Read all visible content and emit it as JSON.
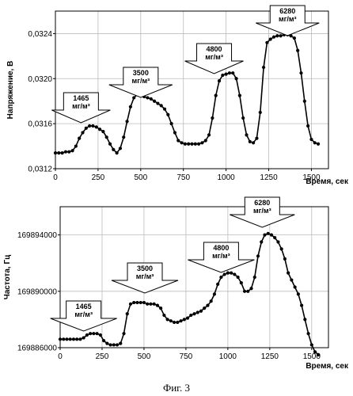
{
  "caption": "Фиг. 3",
  "chart_data": [
    {
      "type": "line",
      "ylabel": "Напряжение, В",
      "xlabel": "Время, сек",
      "xlim": [
        0,
        1600
      ],
      "ylim": [
        0.0312,
        0.0326
      ],
      "xticks": [
        0,
        250,
        500,
        750,
        1000,
        1250,
        1500
      ],
      "xtick_labels": [
        "0",
        "250",
        "500",
        "750",
        "1000",
        "1250",
        "1500"
      ],
      "yticks": [
        0.0312,
        0.0316,
        0.032,
        0.0324
      ],
      "ytick_labels": [
        "0,0312",
        "0,0316",
        "0,0320",
        "0,0324"
      ],
      "grid": true,
      "x": [
        0,
        20,
        40,
        60,
        80,
        100,
        120,
        140,
        160,
        180,
        200,
        220,
        240,
        260,
        280,
        300,
        320,
        340,
        360,
        380,
        400,
        420,
        440,
        460,
        480,
        500,
        520,
        540,
        560,
        580,
        600,
        620,
        640,
        660,
        680,
        700,
        720,
        740,
        760,
        780,
        800,
        820,
        840,
        860,
        880,
        900,
        920,
        940,
        960,
        980,
        1000,
        1020,
        1040,
        1060,
        1080,
        1100,
        1120,
        1140,
        1160,
        1180,
        1200,
        1220,
        1240,
        1260,
        1280,
        1300,
        1320,
        1340,
        1360,
        1380,
        1400,
        1420,
        1440,
        1460,
        1480,
        1500,
        1520,
        1540
      ],
      "y": [
        0.03134,
        0.03134,
        0.03134,
        0.03135,
        0.03135,
        0.03136,
        0.0314,
        0.03147,
        0.03152,
        0.03156,
        0.03158,
        0.03158,
        0.03157,
        0.03155,
        0.03153,
        0.03148,
        0.03142,
        0.03137,
        0.03134,
        0.03138,
        0.03148,
        0.03162,
        0.03175,
        0.03183,
        0.03186,
        0.03185,
        0.03184,
        0.03183,
        0.03182,
        0.0318,
        0.03178,
        0.03176,
        0.03173,
        0.03168,
        0.0316,
        0.03152,
        0.03145,
        0.03143,
        0.03142,
        0.03142,
        0.03142,
        0.03142,
        0.03142,
        0.03143,
        0.03145,
        0.0315,
        0.03165,
        0.03185,
        0.03198,
        0.03203,
        0.03204,
        0.03205,
        0.03205,
        0.032,
        0.03185,
        0.03165,
        0.0315,
        0.03144,
        0.03143,
        0.03147,
        0.0317,
        0.0321,
        0.03232,
        0.03235,
        0.03237,
        0.03238,
        0.03238,
        0.03239,
        0.03239,
        0.03238,
        0.03236,
        0.03225,
        0.03205,
        0.0318,
        0.03158,
        0.03146,
        0.03143,
        0.03142
      ],
      "annotations": [
        {
          "value": "1465",
          "unit": "мг/м³",
          "x": 150
        },
        {
          "value": "3500",
          "unit": "мг/м³",
          "x": 500
        },
        {
          "value": "4800",
          "unit": "мг/м³",
          "x": 930
        },
        {
          "value": "6280",
          "unit": "мг/м³",
          "x": 1360
        }
      ]
    },
    {
      "type": "line",
      "ylabel": "Частота, Гц",
      "xlabel": "Время, сек",
      "xlim": [
        0,
        1600
      ],
      "ylim": [
        169886000,
        169896000
      ],
      "xticks": [
        0,
        250,
        500,
        750,
        1000,
        1250,
        1500
      ],
      "xtick_labels": [
        "0",
        "250",
        "500",
        "750",
        "1000",
        "1250",
        "1500"
      ],
      "yticks": [
        169886000,
        169890000,
        169894000
      ],
      "ytick_labels": [
        "169886000",
        "169890000",
        "169894000"
      ],
      "grid": true,
      "x": [
        0,
        20,
        40,
        60,
        80,
        100,
        120,
        140,
        160,
        180,
        200,
        220,
        240,
        260,
        280,
        300,
        320,
        340,
        360,
        380,
        400,
        420,
        440,
        460,
        480,
        500,
        520,
        540,
        560,
        580,
        600,
        620,
        640,
        660,
        680,
        700,
        720,
        740,
        760,
        780,
        800,
        820,
        840,
        860,
        880,
        900,
        920,
        940,
        960,
        980,
        1000,
        1020,
        1040,
        1060,
        1080,
        1100,
        1120,
        1140,
        1160,
        1180,
        1200,
        1220,
        1240,
        1260,
        1280,
        1300,
        1320,
        1340,
        1360,
        1380,
        1400,
        1420,
        1440,
        1460,
        1480,
        1500,
        1520,
        1540
      ],
      "y": [
        169886600,
        169886600,
        169886600,
        169886600,
        169886600,
        169886600,
        169886600,
        169886700,
        169886900,
        169887000,
        169887000,
        169887000,
        169886900,
        169886500,
        169886300,
        169886200,
        169886200,
        169886200,
        169886300,
        169887000,
        169888400,
        169889100,
        169889200,
        169889200,
        169889200,
        169889200,
        169889100,
        169889100,
        169889100,
        169889000,
        169888800,
        169888300,
        169888000,
        169887900,
        169887800,
        169887800,
        169887900,
        169888000,
        169888100,
        169888300,
        169888400,
        169888500,
        169888600,
        169888800,
        169889000,
        169889300,
        169889800,
        169890500,
        169891000,
        169891200,
        169891300,
        169891300,
        169891200,
        169891000,
        169890600,
        169890000,
        169890000,
        169890200,
        169891000,
        169892500,
        169893500,
        169894000,
        169894100,
        169894000,
        169893800,
        169893500,
        169893000,
        169892300,
        169891300,
        169890800,
        169890300,
        169889800,
        169889000,
        169888000,
        169887000,
        169886200,
        169885700,
        169885500
      ],
      "annotations": [
        {
          "value": "1465",
          "unit": "мг/м³",
          "x": 140
        },
        {
          "value": "3500",
          "unit": "мг/м³",
          "x": 505
        },
        {
          "value": "4800",
          "unit": "мг/м³",
          "x": 960
        },
        {
          "value": "6280",
          "unit": "мг/м³",
          "x": 1205
        }
      ]
    }
  ]
}
